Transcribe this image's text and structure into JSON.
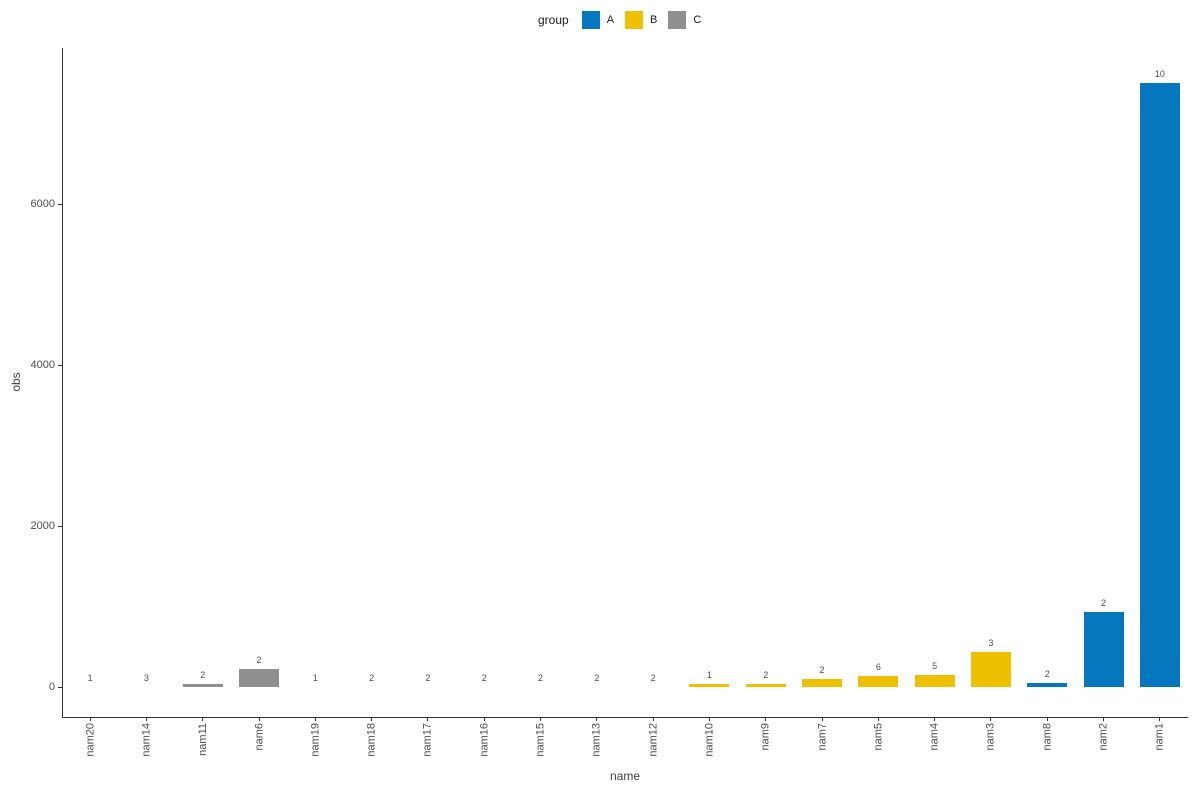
{
  "chart_data": {
    "type": "bar",
    "title": "",
    "xlabel": "name",
    "ylabel": "obs",
    "legend_title": "group",
    "legend_position": "top-center",
    "grid": false,
    "background": "#ffffff",
    "ylim": [
      0,
      7950
    ],
    "yticks": [
      0,
      2000,
      4000,
      6000
    ],
    "groups": [
      {
        "name": "A",
        "color": "#0577be"
      },
      {
        "name": "B",
        "color": "#eec002"
      },
      {
        "name": "C",
        "color": "#8f8f8f"
      }
    ],
    "bars": [
      {
        "name": "nam20",
        "group": null,
        "value": 2,
        "label": "1"
      },
      {
        "name": "nam14",
        "group": null,
        "value": 5,
        "label": "3"
      },
      {
        "name": "nam11",
        "group": "C",
        "value": 35,
        "label": "2"
      },
      {
        "name": "nam6",
        "group": "C",
        "value": 220,
        "label": "2"
      },
      {
        "name": "nam19",
        "group": null,
        "value": 2,
        "label": "1"
      },
      {
        "name": "nam18",
        "group": null,
        "value": 3,
        "label": "2"
      },
      {
        "name": "nam17",
        "group": null,
        "value": 3,
        "label": "2"
      },
      {
        "name": "nam16",
        "group": null,
        "value": 4,
        "label": "2"
      },
      {
        "name": "nam15",
        "group": null,
        "value": 4,
        "label": "2"
      },
      {
        "name": "nam13",
        "group": null,
        "value": 4,
        "label": "2"
      },
      {
        "name": "nam12",
        "group": null,
        "value": 5,
        "label": "2"
      },
      {
        "name": "nam10",
        "group": "B",
        "value": 35,
        "label": "1"
      },
      {
        "name": "nam9",
        "group": "B",
        "value": 35,
        "label": "2"
      },
      {
        "name": "nam7",
        "group": "B",
        "value": 95,
        "label": "2"
      },
      {
        "name": "nam5",
        "group": "B",
        "value": 135,
        "label": "6"
      },
      {
        "name": "nam4",
        "group": "B",
        "value": 145,
        "label": "5"
      },
      {
        "name": "nam3",
        "group": "B",
        "value": 430,
        "label": "3"
      },
      {
        "name": "nam8",
        "group": "A",
        "value": 55,
        "label": "2"
      },
      {
        "name": "nam2",
        "group": "A",
        "value": 930,
        "label": "2"
      },
      {
        "name": "nam1",
        "group": "A",
        "value": 7500,
        "label": "10"
      }
    ]
  }
}
